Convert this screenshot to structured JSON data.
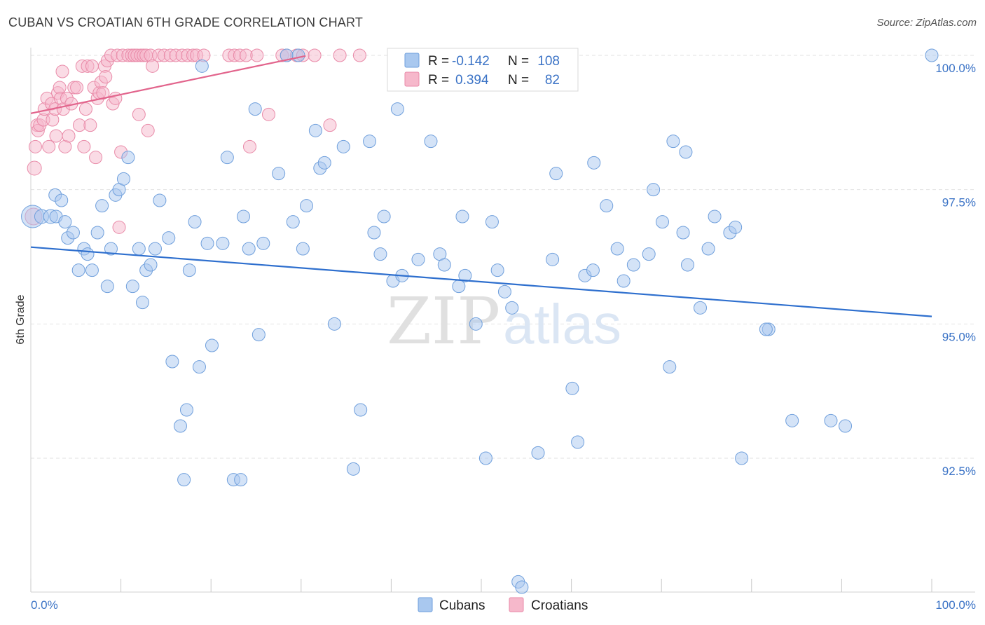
{
  "header": {
    "title": "CUBAN VS CROATIAN 6TH GRADE CORRELATION CHART",
    "source": "Source: ZipAtlas.com"
  },
  "watermark": {
    "zip": "ZIP",
    "atlas": "atlas"
  },
  "legend_stats": [
    {
      "r_label": "R =",
      "r_value": "-0.142",
      "n_label": "N =",
      "n_value": "108",
      "color": "#a9c8ef",
      "stroke": "#6f9fdc"
    },
    {
      "r_label": "R =",
      "r_value": "0.394",
      "n_label": "N =",
      "n_value": "82",
      "color": "#f6b8cb",
      "stroke": "#e98aa8"
    }
  ],
  "bottom_legend": [
    {
      "label": "Cubans",
      "color": "#a9c8ef",
      "stroke": "#6f9fdc"
    },
    {
      "label": "Croatians",
      "color": "#f6b8cb",
      "stroke": "#e98aa8"
    }
  ],
  "chart_data": {
    "type": "scatter",
    "title": "CUBAN VS CROATIAN 6TH GRADE CORRELATION CHART",
    "xlabel": "",
    "ylabel": "6th Grade",
    "xlim": [
      0,
      100
    ],
    "ylim": [
      90.05,
      100.2
    ],
    "x_tick_labels": [
      "0.0%",
      "100.0%"
    ],
    "y_ticks": [
      92.5,
      95.0,
      97.5,
      100.0
    ],
    "y_tick_labels": [
      "92.5%",
      "95.0%",
      "97.5%",
      "100.0%"
    ],
    "x_minor_ticks": [
      0,
      10,
      20,
      30,
      40,
      50,
      60,
      70,
      80,
      90,
      100
    ],
    "grid": true,
    "legend_placement": "top-center",
    "colors": {
      "cubans": "#a9c8ef",
      "cubans_stroke": "#6f9fdc",
      "cubans_line": "#2e6fce",
      "croatians": "#f6b8cb",
      "croatians_stroke": "#e98aa8",
      "croatians_line": "#e2648c"
    },
    "series": [
      {
        "name": "Cubans",
        "trend": {
          "x": [
            0,
            100
          ],
          "y": [
            96.43,
            95.14
          ]
        },
        "points": [
          [
            0.2,
            97.0,
            16
          ],
          [
            1.2,
            97.0,
            10
          ],
          [
            2.2,
            97.0,
            10
          ],
          [
            2.7,
            97.4,
            9
          ],
          [
            2.8,
            97.0,
            9
          ],
          [
            3.4,
            97.3,
            9
          ],
          [
            3.8,
            96.9,
            9
          ],
          [
            4.1,
            96.6,
            9
          ],
          [
            4.7,
            96.7,
            9
          ],
          [
            5.3,
            96.0,
            9
          ],
          [
            5.9,
            96.4,
            9
          ],
          [
            6.3,
            96.3,
            9
          ],
          [
            6.8,
            96.0,
            9
          ],
          [
            7.4,
            96.7,
            9
          ],
          [
            7.9,
            97.2,
            9
          ],
          [
            8.5,
            95.7,
            9
          ],
          [
            8.9,
            96.4,
            9
          ],
          [
            9.4,
            97.4,
            9
          ],
          [
            9.8,
            97.5,
            9
          ],
          [
            10.3,
            97.7,
            9
          ],
          [
            10.8,
            98.1,
            9
          ],
          [
            11.3,
            95.7,
            9
          ],
          [
            12.0,
            96.4,
            9
          ],
          [
            12.4,
            95.4,
            9
          ],
          [
            12.8,
            96.0,
            9
          ],
          [
            13.3,
            96.1,
            9
          ],
          [
            13.8,
            96.4,
            9
          ],
          [
            14.3,
            97.3,
            9
          ],
          [
            15.3,
            96.6,
            9
          ],
          [
            15.7,
            94.3,
            9
          ],
          [
            16.6,
            93.1,
            9
          ],
          [
            17.0,
            92.1,
            9
          ],
          [
            17.3,
            93.4,
            9
          ],
          [
            17.6,
            96.0,
            9
          ],
          [
            18.2,
            96.9,
            9
          ],
          [
            18.7,
            94.2,
            9
          ],
          [
            19.0,
            99.8,
            9
          ],
          [
            19.6,
            96.5,
            9
          ],
          [
            20.1,
            94.6,
            9
          ],
          [
            21.3,
            96.5,
            9
          ],
          [
            21.8,
            98.1,
            9
          ],
          [
            22.5,
            92.1,
            9
          ],
          [
            23.3,
            92.1,
            9
          ],
          [
            23.6,
            97.0,
            9
          ],
          [
            24.2,
            96.4,
            9
          ],
          [
            24.9,
            99.0,
            9
          ],
          [
            25.3,
            94.8,
            9
          ],
          [
            25.8,
            96.5,
            9
          ],
          [
            27.5,
            97.8,
            9
          ],
          [
            28.4,
            100.0,
            9
          ],
          [
            29.7,
            100.0,
            9
          ],
          [
            29.1,
            96.9,
            9
          ],
          [
            30.6,
            97.2,
            9
          ],
          [
            30.2,
            96.4,
            9
          ],
          [
            31.6,
            98.6,
            9
          ],
          [
            32.1,
            97.9,
            9
          ],
          [
            32.6,
            98.0,
            9
          ],
          [
            33.7,
            95.0,
            9
          ],
          [
            34.7,
            98.3,
            9
          ],
          [
            35.8,
            92.3,
            9
          ],
          [
            36.6,
            93.4,
            9
          ],
          [
            37.6,
            98.4,
            9
          ],
          [
            38.1,
            96.7,
            9
          ],
          [
            38.8,
            96.3,
            9
          ],
          [
            39.2,
            97.0,
            9
          ],
          [
            40.2,
            95.8,
            9
          ],
          [
            40.7,
            99.0,
            9
          ],
          [
            41.2,
            95.9,
            9
          ],
          [
            43.0,
            96.2,
            9
          ],
          [
            44.4,
            98.4,
            9
          ],
          [
            45.4,
            96.3,
            9
          ],
          [
            45.9,
            96.1,
            9
          ],
          [
            47.5,
            95.7,
            9
          ],
          [
            47.9,
            97.0,
            9
          ],
          [
            48.2,
            95.9,
            9
          ],
          [
            49.4,
            95.0,
            9
          ],
          [
            50.5,
            92.5,
            9
          ],
          [
            51.2,
            96.9,
            9
          ],
          [
            51.8,
            96.0,
            9
          ],
          [
            52.6,
            95.6,
            9
          ],
          [
            53.4,
            95.3,
            9
          ],
          [
            54.1,
            90.2,
            9
          ],
          [
            54.5,
            90.1,
            9
          ],
          [
            56.3,
            92.6,
            9
          ],
          [
            57.9,
            96.2,
            9
          ],
          [
            58.3,
            97.8,
            9
          ],
          [
            60.1,
            93.8,
            9
          ],
          [
            60.7,
            92.8,
            9
          ],
          [
            61.5,
            95.9,
            9
          ],
          [
            62.5,
            98.0,
            9
          ],
          [
            62.4,
            96.0,
            9
          ],
          [
            63.9,
            97.2,
            9
          ],
          [
            65.1,
            96.4,
            9
          ],
          [
            65.8,
            95.8,
            9
          ],
          [
            66.9,
            96.1,
            9
          ],
          [
            68.6,
            96.3,
            9
          ],
          [
            69.1,
            97.5,
            9
          ],
          [
            70.1,
            96.9,
            9
          ],
          [
            70.9,
            94.2,
            9
          ],
          [
            71.3,
            98.4,
            9
          ],
          [
            72.4,
            96.7,
            9
          ],
          [
            72.9,
            96.1,
            9
          ],
          [
            72.7,
            98.2,
            9
          ],
          [
            74.3,
            95.3,
            9
          ],
          [
            75.2,
            96.4,
            9
          ],
          [
            75.9,
            97.0,
            9
          ],
          [
            77.6,
            96.7,
            9
          ],
          [
            78.2,
            96.8,
            9
          ],
          [
            78.9,
            92.5,
            9
          ],
          [
            81.9,
            94.9,
            9
          ],
          [
            81.6,
            94.9,
            9
          ],
          [
            84.5,
            93.2,
            9
          ],
          [
            88.8,
            93.2,
            9
          ],
          [
            90.4,
            93.1,
            9
          ],
          [
            100.0,
            100.0,
            9
          ]
        ]
      },
      {
        "name": "Croatians",
        "trend": {
          "x": [
            0,
            30.5
          ],
          "y": [
            98.92,
            99.99
          ]
        },
        "points": [
          [
            0.3,
            97.0,
            12
          ],
          [
            0.4,
            97.9,
            10
          ],
          [
            0.5,
            98.3,
            9
          ],
          [
            0.7,
            98.7,
            9
          ],
          [
            0.8,
            98.6,
            9
          ],
          [
            1.0,
            98.7,
            9
          ],
          [
            1.4,
            98.8,
            9
          ],
          [
            1.5,
            99.0,
            9
          ],
          [
            1.8,
            99.2,
            9
          ],
          [
            2.0,
            98.3,
            9
          ],
          [
            2.3,
            99.1,
            9
          ],
          [
            2.4,
            98.8,
            9
          ],
          [
            2.7,
            99.0,
            9
          ],
          [
            2.8,
            98.5,
            9
          ],
          [
            3.0,
            99.3,
            9
          ],
          [
            3.2,
            99.4,
            9
          ],
          [
            3.3,
            99.2,
            9
          ],
          [
            3.5,
            99.7,
            9
          ],
          [
            3.6,
            99.0,
            9
          ],
          [
            3.8,
            98.3,
            9
          ],
          [
            4.0,
            99.2,
            9
          ],
          [
            4.2,
            98.5,
            9
          ],
          [
            4.5,
            99.1,
            9
          ],
          [
            4.8,
            99.4,
            9
          ],
          [
            5.1,
            99.4,
            9
          ],
          [
            5.4,
            98.7,
            9
          ],
          [
            5.7,
            99.8,
            9
          ],
          [
            5.9,
            98.3,
            9
          ],
          [
            6.1,
            99.0,
            9
          ],
          [
            6.3,
            99.8,
            9
          ],
          [
            6.6,
            98.7,
            9
          ],
          [
            6.8,
            99.8,
            9
          ],
          [
            7.0,
            99.4,
            9
          ],
          [
            7.2,
            98.1,
            9
          ],
          [
            7.4,
            99.2,
            9
          ],
          [
            7.6,
            99.3,
            9
          ],
          [
            7.8,
            99.5,
            9
          ],
          [
            8.0,
            99.3,
            9
          ],
          [
            8.2,
            99.8,
            9
          ],
          [
            8.3,
            99.6,
            9
          ],
          [
            8.5,
            99.9,
            9
          ],
          [
            8.9,
            100.0,
            9
          ],
          [
            9.1,
            99.1,
            9
          ],
          [
            9.4,
            99.2,
            9
          ],
          [
            9.6,
            100.0,
            9
          ],
          [
            9.8,
            96.8,
            9
          ],
          [
            10.0,
            98.2,
            9
          ],
          [
            10.2,
            100.0,
            9
          ],
          [
            10.8,
            100.0,
            9
          ],
          [
            11.2,
            100.0,
            9
          ],
          [
            11.5,
            100.0,
            9
          ],
          [
            11.8,
            100.0,
            9
          ],
          [
            12.0,
            98.9,
            9
          ],
          [
            12.2,
            100.0,
            9
          ],
          [
            12.5,
            100.0,
            9
          ],
          [
            12.8,
            100.0,
            9
          ],
          [
            13.0,
            98.6,
            9
          ],
          [
            13.3,
            100.0,
            9
          ],
          [
            13.5,
            99.8,
            9
          ],
          [
            14.2,
            100.0,
            9
          ],
          [
            14.8,
            100.0,
            9
          ],
          [
            15.5,
            100.0,
            9
          ],
          [
            16.1,
            100.0,
            9
          ],
          [
            16.8,
            100.0,
            9
          ],
          [
            17.4,
            100.0,
            9
          ],
          [
            18.0,
            100.0,
            9
          ],
          [
            18.4,
            100.0,
            9
          ],
          [
            19.2,
            100.0,
            9
          ],
          [
            22.0,
            100.0,
            9
          ],
          [
            22.6,
            100.0,
            9
          ],
          [
            23.2,
            100.0,
            9
          ],
          [
            23.9,
            100.0,
            9
          ],
          [
            24.3,
            98.3,
            9
          ],
          [
            25.1,
            100.0,
            9
          ],
          [
            26.4,
            98.9,
            9
          ],
          [
            27.9,
            100.0,
            9
          ],
          [
            28.4,
            100.0,
            9
          ],
          [
            29.5,
            100.0,
            9
          ],
          [
            30.2,
            100.0,
            9
          ],
          [
            31.5,
            100.0,
            9
          ],
          [
            33.2,
            98.7,
            9
          ],
          [
            34.3,
            100.0,
            9
          ],
          [
            36.5,
            100.0,
            9
          ]
        ]
      }
    ]
  }
}
